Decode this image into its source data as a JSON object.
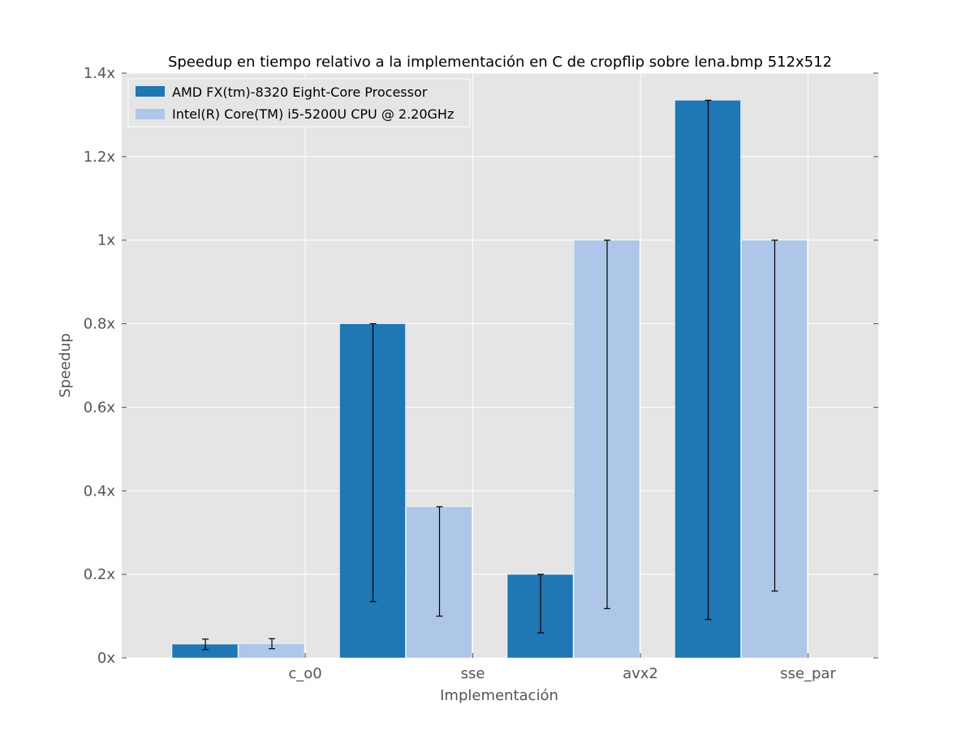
{
  "chart_data": {
    "type": "bar",
    "title": "Speedup en tiempo relativo a la implementación en C de cropflip sobre lena.bmp 512x512",
    "xlabel": "Implementación",
    "ylabel": "Speedup",
    "ylim": [
      0,
      1.4
    ],
    "yticks": [
      0,
      0.2,
      0.4,
      0.6,
      0.8,
      1.0,
      1.2,
      1.4
    ],
    "ytick_labels": [
      "0x",
      "0.2x",
      "0.4x",
      "0.6x",
      "0.8x",
      "1x",
      "1.2x",
      "1.4x"
    ],
    "categories": [
      "c_o0",
      "sse",
      "avx2",
      "sse_par"
    ],
    "grid": true,
    "legend_position": "top-left",
    "series": [
      {
        "name": "AMD FX(tm)-8320 Eight-Core Processor",
        "color": "#1f77b4",
        "values": [
          0.033,
          0.8,
          0.2,
          1.335
        ],
        "error_low": [
          0.02,
          0.135,
          0.06,
          0.092
        ],
        "error_high": [
          0.045,
          0.8,
          0.2,
          1.335
        ]
      },
      {
        "name": "Intel(R) Core(TM) i5-5200U CPU @ 2.20GHz",
        "color": "#aec7e8",
        "values": [
          0.034,
          0.362,
          1.0,
          1.0
        ],
        "error_low": [
          0.022,
          0.1,
          0.118,
          0.16
        ],
        "error_high": [
          0.046,
          0.362,
          1.0,
          1.0
        ]
      }
    ]
  }
}
